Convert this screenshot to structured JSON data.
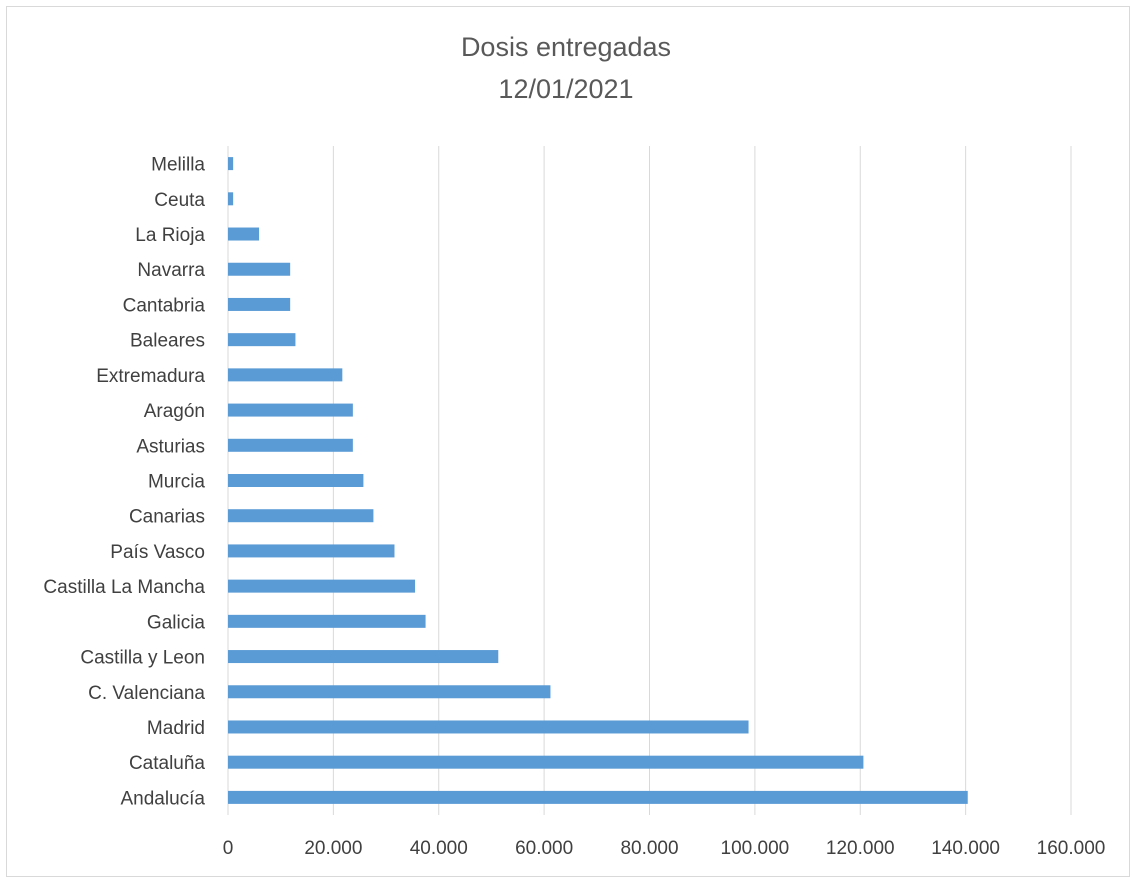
{
  "chart_data": {
    "type": "bar",
    "orientation": "horizontal",
    "title": "Dosis entregadas",
    "subtitle": "12/01/2021",
    "categories": [
      "Andalucía",
      "Cataluña",
      "Madrid",
      "C. Valenciana",
      "Castilla y Leon",
      "Galicia",
      "Castilla La Mancha",
      "País Vasco",
      "Canarias",
      "Murcia",
      "Asturias",
      "Aragón",
      "Extremadura",
      "Baleares",
      "Cantabria",
      "Navarra",
      "La Rioja",
      "Ceuta",
      "Melilla"
    ],
    "values": [
      140400,
      120600,
      98800,
      61200,
      51300,
      37500,
      35500,
      31600,
      27600,
      25700,
      23700,
      23700,
      21700,
      12800,
      11800,
      11800,
      5900,
      975,
      975
    ],
    "xlim": [
      0,
      160000
    ],
    "xticks": [
      0,
      20000,
      40000,
      60000,
      80000,
      100000,
      120000,
      140000,
      160000
    ],
    "xtick_labels": [
      "0",
      "20.000",
      "40.000",
      "60.000",
      "80.000",
      "100.000",
      "120.000",
      "140.000",
      "160.000"
    ],
    "grid": "vertical",
    "bar_color": "#5b9bd5",
    "grid_color": "#d9d9d9"
  }
}
